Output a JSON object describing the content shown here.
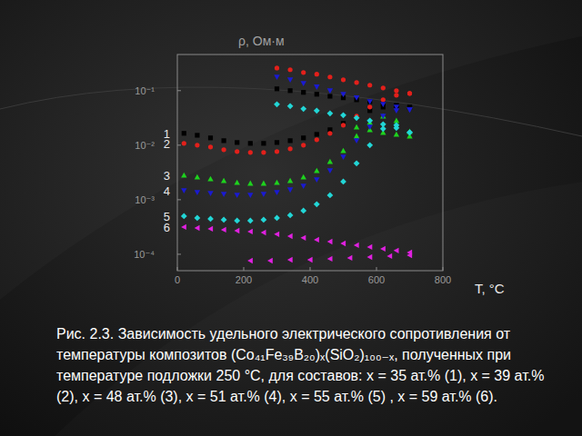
{
  "chart_data": {
    "type": "scatter",
    "title": "Рис. 2.3. Зависимость удельного электрического сопротивления от температуры композитов (Co₄₁Fe₃₉B₂₀)ₓ(SiO₂)₁₀₀₋ₓ, полученных при температуре подложки 250 °C, для составов: x = 35 ат.% (1), x = 39 ат.% (2), x = 48 ат.% (3), x = 51 ат.% (4), x = 55 ат.% (5) , x = 59 ат.% (6).",
    "x_label": "T, °C",
    "y_label": "ρ, Ом·м",
    "log": "y",
    "grid": false,
    "xlim": [
      0,
      800
    ],
    "xticks": [
      0,
      200,
      400,
      600,
      800
    ],
    "ylim": [
      5e-05,
      0.46
    ],
    "yticks": [
      {
        "value": 0.1,
        "label": "10⁻¹"
      },
      {
        "value": 0.01,
        "label": "10⁻²"
      },
      {
        "value": 0.001,
        "label": "10⁻³"
      },
      {
        "value": 0.0001,
        "label": "10⁻⁴"
      }
    ],
    "series": [
      {
        "name": "1",
        "color": "#000000",
        "marker": "square",
        "x": [
          20,
          60,
          100,
          140,
          180,
          220,
          260,
          300,
          340,
          380,
          420,
          460,
          500,
          540,
          580,
          620,
          660,
          700,
          700,
          660,
          620,
          580,
          540,
          500,
          460,
          420,
          380,
          340,
          300
        ],
        "values": [
          0.0165,
          0.0152,
          0.0136,
          0.0121,
          0.0112,
          0.0108,
          0.0108,
          0.0112,
          0.0121,
          0.0136,
          0.0158,
          0.0192,
          0.0251,
          0.0329,
          0.043,
          0.05,
          0.052,
          0.05,
          0.05,
          0.054,
          0.058,
          0.063,
          0.068,
          0.074,
          0.079,
          0.086,
          0.093,
          0.1,
          0.108
        ]
      },
      {
        "name": "2",
        "color": "#e3201b",
        "marker": "circle",
        "x": [
          20,
          60,
          100,
          140,
          180,
          220,
          260,
          300,
          340,
          380,
          420,
          460,
          500,
          540,
          580,
          620,
          660,
          700,
          700,
          660,
          620,
          580,
          540,
          500,
          460,
          420,
          380,
          340,
          300
        ],
        "values": [
          0.0108,
          0.01,
          0.00927,
          0.00826,
          0.00764,
          0.00736,
          0.00736,
          0.00764,
          0.00858,
          0.01,
          0.0126,
          0.0165,
          0.0233,
          0.0341,
          0.05,
          0.068,
          0.0826,
          0.0891,
          0.0891,
          0.1,
          0.112,
          0.126,
          0.141,
          0.158,
          0.178,
          0.2,
          0.215,
          0.242,
          0.26
        ]
      },
      {
        "name": "3",
        "color": "#1ed21e",
        "marker": "triangle",
        "x": [
          20,
          60,
          100,
          140,
          180,
          220,
          260,
          300,
          340,
          380,
          420,
          460,
          500,
          540,
          580,
          620,
          660,
          700,
          700,
          660,
          620,
          580,
          540
        ],
        "values": [
          0.00282,
          0.00261,
          0.00242,
          0.00224,
          0.00207,
          0.002,
          0.002,
          0.00207,
          0.00224,
          0.00261,
          0.00341,
          0.00501,
          0.00794,
          0.0147,
          0.0261,
          0.0341,
          0.0282,
          0.0178,
          0.0147,
          0.0158,
          0.0171,
          0.0192,
          0.0215
        ]
      },
      {
        "name": "4",
        "color": "#1a1ad2",
        "marker": "triangle-down",
        "x": [
          20,
          60,
          100,
          140,
          180,
          220,
          260,
          300,
          340,
          380,
          420,
          460,
          500,
          540,
          580,
          620,
          660,
          700,
          700,
          660,
          620,
          580,
          540,
          500,
          460,
          420,
          380,
          340,
          300
        ],
        "values": [
          0.00147,
          0.00136,
          0.00131,
          0.00126,
          0.00121,
          0.00121,
          0.00126,
          0.00136,
          0.00152,
          0.00178,
          0.00233,
          0.00341,
          0.00607,
          0.0121,
          0.0215,
          0.0341,
          0.043,
          0.0447,
          0.0447,
          0.05,
          0.0562,
          0.063,
          0.074,
          0.086,
          0.1,
          0.117,
          0.136,
          0.158,
          0.178
        ]
      },
      {
        "name": "5",
        "color": "#22d6d6",
        "marker": "diamond",
        "x": [
          20,
          60,
          100,
          140,
          180,
          220,
          260,
          300,
          340,
          380,
          420,
          460,
          500,
          540,
          580,
          620,
          660,
          700,
          700,
          660,
          620,
          580,
          540,
          500,
          460,
          420,
          380,
          340,
          300
        ],
        "values": [
          0.000501,
          0.000464,
          0.000447,
          0.00043,
          0.000414,
          0.000414,
          0.00043,
          0.000464,
          0.000521,
          0.000631,
          0.000826,
          0.00121,
          0.00215,
          0.00464,
          0.01,
          0.02,
          0.0233,
          0.0171,
          0.0171,
          0.0207,
          0.0242,
          0.0282,
          0.0316,
          0.0355,
          0.0383,
          0.043,
          0.0464,
          0.052,
          0.0562
        ]
      },
      {
        "name": "6",
        "color": "#e020e0",
        "marker": "triangle-left",
        "x": [
          20,
          60,
          100,
          140,
          180,
          220,
          260,
          300,
          340,
          380,
          420,
          460,
          500,
          540,
          580,
          620,
          660,
          700,
          700,
          640,
          580,
          520,
          460,
          400,
          340,
          280,
          220
        ],
        "values": [
          0.000316,
          0.000304,
          0.000293,
          0.000282,
          0.000271,
          0.000261,
          0.000251,
          0.000233,
          0.000215,
          0.0002,
          0.000185,
          0.000171,
          0.000158,
          0.000147,
          0.000136,
          0.000126,
          0.000117,
          0.000108,
          9.62e-05,
          9.27e-05,
          8.91e-05,
          8.58e-05,
          8.26e-05,
          7.94e-05,
          7.94e-05,
          7.64e-05,
          7.64e-05
        ]
      }
    ]
  }
}
